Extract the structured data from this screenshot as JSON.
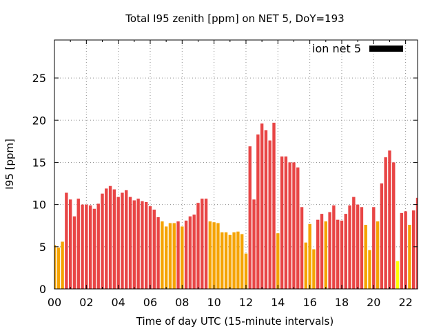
{
  "chart_data": {
    "type": "bar",
    "title": "Total I95 zenith [ppm] on NET 5, DoY=193",
    "xlabel": "Time of day UTC (15-minute intervals)",
    "ylabel": "I95 [ppm]",
    "xlim": [
      0,
      22.75
    ],
    "ylim": [
      0,
      29.5
    ],
    "x_ticks": [
      "00",
      "02",
      "04",
      "06",
      "08",
      "10",
      "12",
      "14",
      "16",
      "18",
      "20",
      "22"
    ],
    "y_ticks": [
      0,
      5,
      10,
      15,
      20,
      25
    ],
    "grid": true,
    "legend": {
      "label": "ion net 5",
      "color": "#000000",
      "position": "top-right"
    },
    "colors": {
      "high": "#e84545",
      "medium": "#f5a300",
      "low": "#ffff00"
    },
    "bar_width_hours": 0.19,
    "series": [
      {
        "x": [
          0.0,
          0.25,
          0.5,
          0.75,
          1.0,
          1.25,
          1.5,
          1.75,
          2.0,
          2.25,
          2.5,
          2.75,
          3.0,
          3.25,
          3.5,
          3.75,
          4.0,
          4.25,
          4.5,
          4.75,
          5.0,
          5.25,
          5.5,
          5.75,
          6.0,
          6.25,
          6.5,
          6.75,
          7.0,
          7.25,
          7.5,
          7.75,
          8.0,
          8.25,
          8.5,
          8.75,
          9.0,
          9.25,
          9.5,
          9.75,
          10.0,
          10.25,
          10.5,
          10.75,
          11.0,
          11.25,
          11.5,
          11.75,
          12.0,
          12.25,
          12.5,
          12.75,
          13.0,
          13.25,
          13.5,
          13.75,
          14.0,
          14.25,
          14.5,
          14.75,
          15.0,
          15.25,
          15.5,
          15.75,
          16.0,
          16.25,
          16.5,
          16.75,
          17.0,
          17.25,
          17.5,
          17.75,
          18.0,
          18.25,
          18.5,
          18.75,
          19.0,
          19.25,
          19.5,
          19.75,
          20.0,
          20.25,
          20.5,
          20.75,
          21.0,
          21.25,
          21.5,
          21.75,
          22.0,
          22.25,
          22.5,
          22.75
        ],
        "values": [
          5.2,
          4.9,
          5.6,
          11.4,
          10.6,
          8.6,
          10.7,
          10.0,
          10.0,
          9.9,
          9.5,
          10.1,
          11.3,
          11.9,
          12.2,
          11.8,
          10.9,
          11.4,
          11.7,
          10.9,
          10.5,
          10.7,
          10.4,
          10.3,
          9.8,
          9.4,
          8.5,
          8.0,
          7.4,
          7.8,
          7.8,
          8.0,
          7.4,
          8.1,
          8.6,
          8.8,
          10.2,
          10.7,
          10.7,
          8.0,
          7.9,
          7.8,
          6.7,
          6.7,
          6.4,
          6.7,
          6.8,
          6.5,
          4.2,
          16.9,
          10.6,
          18.3,
          19.6,
          18.8,
          17.6,
          19.7,
          6.6,
          15.7,
          15.7,
          15.0,
          15.0,
          14.4,
          9.7,
          5.5,
          7.7,
          4.7,
          8.2,
          8.9,
          8.0,
          9.1,
          9.9,
          8.2,
          8.1,
          8.9,
          9.9,
          10.9,
          10.0,
          9.7,
          7.6,
          4.6,
          9.7,
          8.0,
          12.5,
          15.6,
          16.4,
          15.0,
          3.3,
          9.0,
          9.2,
          7.6,
          9.3,
          10.8
        ],
        "levels": [
          "m",
          "m",
          "m",
          "h",
          "h",
          "h",
          "h",
          "h",
          "h",
          "h",
          "h",
          "h",
          "h",
          "h",
          "h",
          "h",
          "h",
          "h",
          "h",
          "h",
          "h",
          "h",
          "h",
          "h",
          "h",
          "h",
          "h",
          "m",
          "m",
          "m",
          "m",
          "h",
          "m",
          "h",
          "h",
          "h",
          "h",
          "h",
          "h",
          "m",
          "m",
          "m",
          "m",
          "m",
          "m",
          "m",
          "m",
          "m",
          "m",
          "h",
          "h",
          "h",
          "h",
          "h",
          "h",
          "h",
          "m",
          "h",
          "h",
          "h",
          "h",
          "h",
          "h",
          "m",
          "m",
          "m",
          "h",
          "h",
          "m",
          "h",
          "h",
          "h",
          "h",
          "h",
          "h",
          "h",
          "h",
          "h",
          "m",
          "m",
          "h",
          "m",
          "h",
          "h",
          "h",
          "h",
          "l",
          "h",
          "h",
          "m",
          "h",
          "h"
        ]
      }
    ]
  }
}
